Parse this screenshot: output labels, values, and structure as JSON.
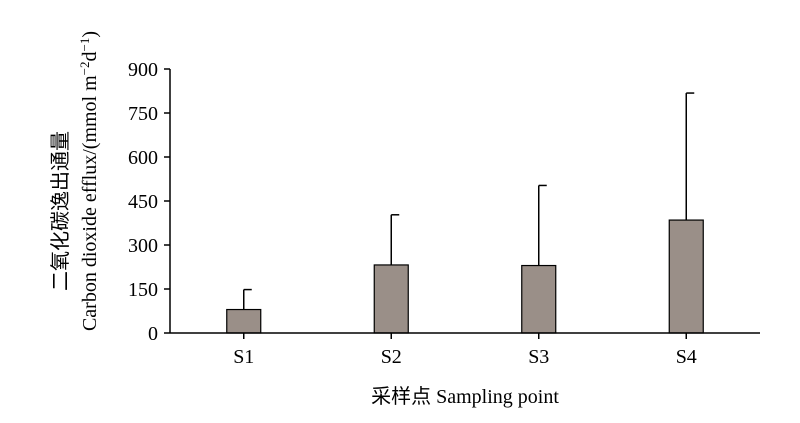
{
  "chart_data": {
    "type": "bar",
    "categories": [
      "S1",
      "S2",
      "S3",
      "S4"
    ],
    "values": [
      80,
      232,
      230,
      385
    ],
    "error_upper": [
      148,
      403,
      503,
      818
    ],
    "xlabel": "采样点 Sampling point",
    "ylabel_line1": "二氧化碳逸出通量",
    "ylabel_line2_main": "Carbon dioxide efflux/(mmol m",
    "ylabel_sup1": "−2",
    "ylabel_mid": "d",
    "ylabel_sup2": "−1",
    "ylabel_end": ")",
    "ylim": [
      0,
      900
    ],
    "yticks": [
      0,
      150,
      300,
      450,
      600,
      750,
      900
    ],
    "bar_color": "#9a8f88",
    "grid": false
  }
}
